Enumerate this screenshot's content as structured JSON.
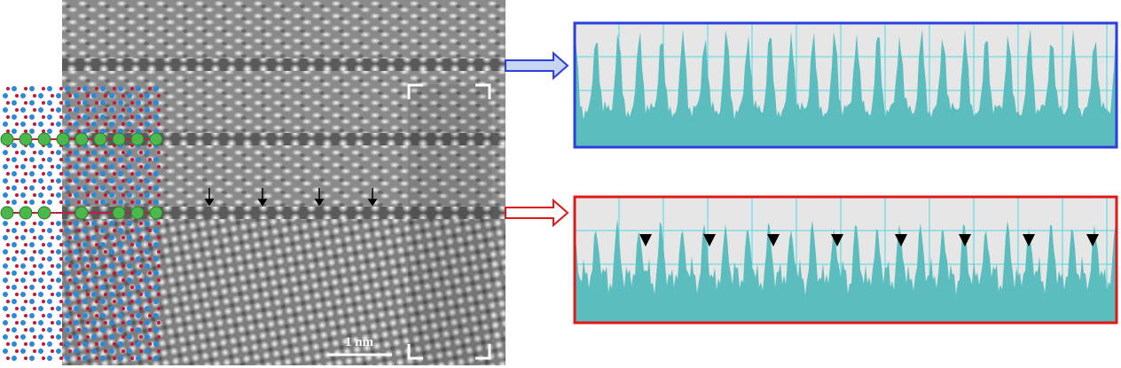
{
  "scale_bar": {
    "label": "1 nm"
  }
}
